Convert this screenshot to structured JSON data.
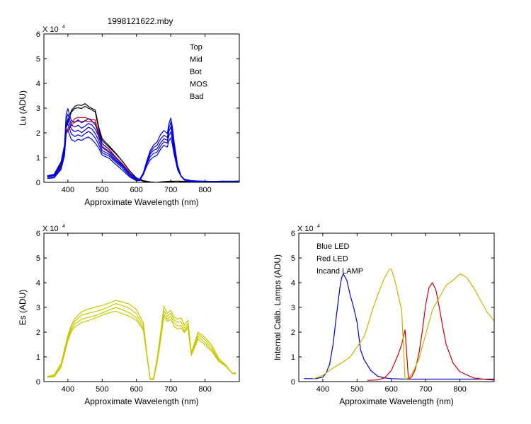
{
  "figure": {
    "title": "1998121622.mby"
  },
  "chart_data": [
    {
      "id": "lu",
      "type": "line",
      "title": "1998121622.mby",
      "xlabel": "Approximate Wavelength (nm)",
      "ylabel": "Lu (ADU)",
      "exponent_label": "X 10",
      "exponent_sup": "4",
      "xlim": [
        330,
        900
      ],
      "ylim": [
        0,
        6
      ],
      "xticks": [
        400,
        500,
        600,
        700,
        800
      ],
      "yticks": [
        0,
        1,
        2,
        3,
        4,
        5,
        6
      ],
      "legend_position": "top-right",
      "series": [
        {
          "name": "Top",
          "color": "#000000",
          "variants": [
            1.0,
            0.97
          ],
          "x": [
            340,
            360,
            380,
            390,
            395,
            400,
            410,
            420,
            430,
            440,
            450,
            460,
            470,
            480,
            490,
            500,
            520,
            540,
            560,
            580,
            600,
            620,
            640,
            660,
            680,
            700,
            720,
            740,
            760,
            780,
            800,
            850,
            900
          ],
          "y": [
            0.25,
            0.3,
            0.8,
            1.5,
            2.4,
            2.5,
            2.9,
            3.05,
            3.1,
            3.1,
            3.2,
            3.1,
            3.0,
            2.9,
            2.2,
            1.75,
            1.5,
            1.2,
            0.85,
            0.45,
            0.15,
            0.05,
            0.03,
            0.02,
            0.02,
            0.02,
            0.02,
            0.02,
            0.02,
            0.02,
            0.02,
            0.02,
            0.02
          ]
        },
        {
          "name": "Mid",
          "color": "#e00000",
          "variants": [
            1.0,
            0.95
          ],
          "x": [
            340,
            360,
            380,
            390,
            395,
            400,
            410,
            420,
            430,
            440,
            450,
            460,
            470,
            480,
            490,
            500,
            520,
            540,
            560,
            580,
            600
          ],
          "y": [
            0.22,
            0.27,
            0.7,
            1.3,
            2.1,
            2.2,
            2.4,
            2.55,
            2.6,
            2.6,
            2.65,
            2.6,
            2.55,
            2.5,
            1.9,
            1.55,
            1.35,
            1.05,
            0.75,
            0.38,
            0.1
          ]
        },
        {
          "name": "Bot",
          "color": "#00a000",
          "variants": [],
          "x": [],
          "y": []
        },
        {
          "name": "MOS",
          "color": "#0000e0",
          "variants": [
            1.0,
            0.92,
            0.85,
            0.78,
            0.7
          ],
          "x": [
            340,
            360,
            380,
            390,
            395,
            400,
            410,
            420,
            430,
            440,
            450,
            460,
            470,
            480,
            490,
            500,
            520,
            540,
            560,
            580,
            600,
            610,
            620,
            630,
            640,
            650,
            660,
            670,
            680,
            690,
            695,
            700,
            705,
            710,
            720,
            730,
            740,
            760,
            780,
            800,
            850,
            900
          ],
          "y": [
            0.25,
            0.3,
            0.75,
            1.5,
            2.8,
            3.0,
            2.5,
            2.4,
            2.5,
            2.4,
            2.5,
            2.6,
            2.5,
            2.3,
            2.0,
            1.55,
            1.35,
            1.0,
            0.7,
            0.35,
            0.12,
            0.12,
            0.4,
            0.9,
            1.3,
            1.5,
            1.6,
            1.9,
            2.1,
            2.0,
            2.4,
            2.6,
            2.2,
            1.6,
            0.7,
            0.3,
            0.12,
            0.05,
            0.03,
            0.02,
            0.02,
            0.02
          ]
        },
        {
          "name": "Bad",
          "color": "#c8c8c8",
          "variants": [],
          "x": [],
          "y": []
        }
      ]
    },
    {
      "id": "es",
      "type": "line",
      "title": "",
      "xlabel": "Approximate Wavelength (nm)",
      "ylabel": "Es (ADU)",
      "exponent_label": "X 10",
      "exponent_sup": "4",
      "xlim": [
        330,
        900
      ],
      "ylim": [
        0,
        6
      ],
      "xticks": [
        400,
        500,
        600,
        700,
        800
      ],
      "yticks": [
        0,
        1,
        2,
        3,
        4,
        5,
        6
      ],
      "series": [
        {
          "name": "",
          "color": "#c8c800",
          "variants": [
            1.0,
            0.95,
            0.9,
            0.86
          ],
          "x": [
            340,
            360,
            380,
            390,
            400,
            410,
            420,
            440,
            460,
            480,
            500,
            520,
            540,
            560,
            580,
            600,
            620,
            630,
            640,
            650,
            660,
            670,
            680,
            690,
            700,
            710,
            720,
            730,
            740,
            750,
            760,
            780,
            800,
            820,
            840,
            860,
            880,
            890
          ],
          "y": [
            0.2,
            0.25,
            0.7,
            1.3,
            1.9,
            2.3,
            2.55,
            2.8,
            2.9,
            3.0,
            3.1,
            3.2,
            3.3,
            3.2,
            3.1,
            2.9,
            2.4,
            1.2,
            0.1,
            0.1,
            0.9,
            1.9,
            3.05,
            2.8,
            2.9,
            2.6,
            2.5,
            2.55,
            2.3,
            2.5,
            1.2,
            2.0,
            1.75,
            1.45,
            0.95,
            0.7,
            0.35,
            0.35
          ]
        }
      ]
    },
    {
      "id": "lamps",
      "type": "line",
      "title": "",
      "xlabel": "Approximate Wavelength (nm)",
      "ylabel": "Internal Calib. Lamps (ADU)",
      "exponent_label": "X 10",
      "exponent_sup": "4",
      "xlim": [
        330,
        900
      ],
      "ylim": [
        0,
        6
      ],
      "xticks": [
        400,
        500,
        600,
        700,
        800
      ],
      "yticks": [
        0,
        1,
        2,
        3,
        4,
        5,
        6
      ],
      "legend_position": "top-left",
      "series": [
        {
          "name": "Blue LED",
          "color": "#0000c0",
          "variants": [
            1.0
          ],
          "x": [
            345,
            380,
            400,
            410,
            420,
            430,
            440,
            450,
            455,
            460,
            470,
            480,
            490,
            500,
            510,
            520,
            540,
            560,
            580,
            600,
            640,
            700,
            800,
            900
          ],
          "y": [
            0.12,
            0.12,
            0.18,
            0.35,
            0.7,
            1.5,
            2.7,
            3.8,
            4.2,
            4.35,
            4.1,
            3.5,
            3.0,
            2.4,
            1.3,
            0.9,
            0.45,
            0.22,
            0.15,
            0.12,
            0.1,
            0.1,
            0.1,
            0.1
          ]
        },
        {
          "name": "Red LED",
          "color": "#d00000",
          "variants": [
            1.0
          ],
          "x": [
            530,
            560,
            580,
            600,
            620,
            630,
            640,
            650,
            660,
            670,
            680,
            690,
            700,
            710,
            720,
            730,
            740,
            750,
            760,
            780,
            800,
            840,
            880,
            900
          ],
          "y": [
            0.05,
            0.07,
            0.15,
            0.45,
            1.1,
            1.5,
            2.1,
            0.1,
            0.2,
            0.5,
            1.1,
            2.0,
            3.1,
            3.8,
            4.0,
            3.7,
            3.0,
            2.2,
            1.5,
            0.75,
            0.4,
            0.15,
            0.08,
            0.06
          ]
        },
        {
          "name": "Incand LAMP",
          "color": "#c8b400",
          "variants": [
            1.0
          ],
          "x": [
            370,
            400,
            430,
            460,
            480,
            500,
            510,
            520,
            530,
            540,
            560,
            580,
            595,
            600,
            610,
            620,
            630,
            640,
            650,
            660,
            680,
            700,
            720,
            740,
            760,
            780,
            800,
            810,
            820,
            840,
            860,
            880,
            900
          ],
          "y": [
            0.1,
            0.25,
            0.55,
            0.8,
            1.0,
            1.4,
            1.6,
            1.8,
            2.2,
            2.7,
            3.5,
            4.2,
            4.55,
            4.55,
            4.1,
            3.5,
            2.9,
            0.1,
            0.15,
            0.3,
            0.9,
            1.9,
            2.9,
            3.4,
            3.9,
            4.1,
            4.35,
            4.3,
            4.2,
            3.8,
            3.3,
            2.8,
            2.45
          ]
        }
      ]
    }
  ]
}
